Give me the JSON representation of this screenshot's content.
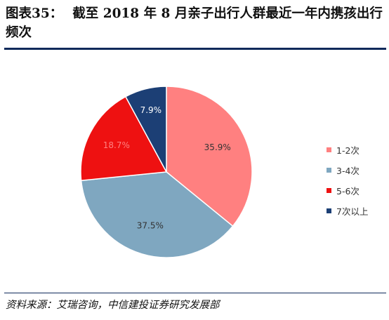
{
  "figure": {
    "label": "图表35：",
    "title": "截至 2018 年 8 月亲子出行人群最近一年内携孩出行频次",
    "source": "资料来源：艾瑞咨询，中信建投证券研究发展部"
  },
  "chart_data": {
    "type": "pie",
    "categories": [
      "1-2次",
      "3-4次",
      "5-6次",
      "7次以上"
    ],
    "values": [
      35.9,
      37.5,
      18.7,
      7.9
    ],
    "value_labels": [
      "35.9%",
      "37.5%",
      "18.7%",
      "7.9%"
    ],
    "colors": [
      "#ff8080",
      "#7fa7c0",
      "#ee1111",
      "#1c3f75"
    ],
    "label_colors": [
      "#333333",
      "#333333",
      "#ff8080",
      "#ffffff"
    ],
    "start_angle_deg": 0,
    "direction": "clockwise",
    "legend_position": "right",
    "title": ""
  }
}
